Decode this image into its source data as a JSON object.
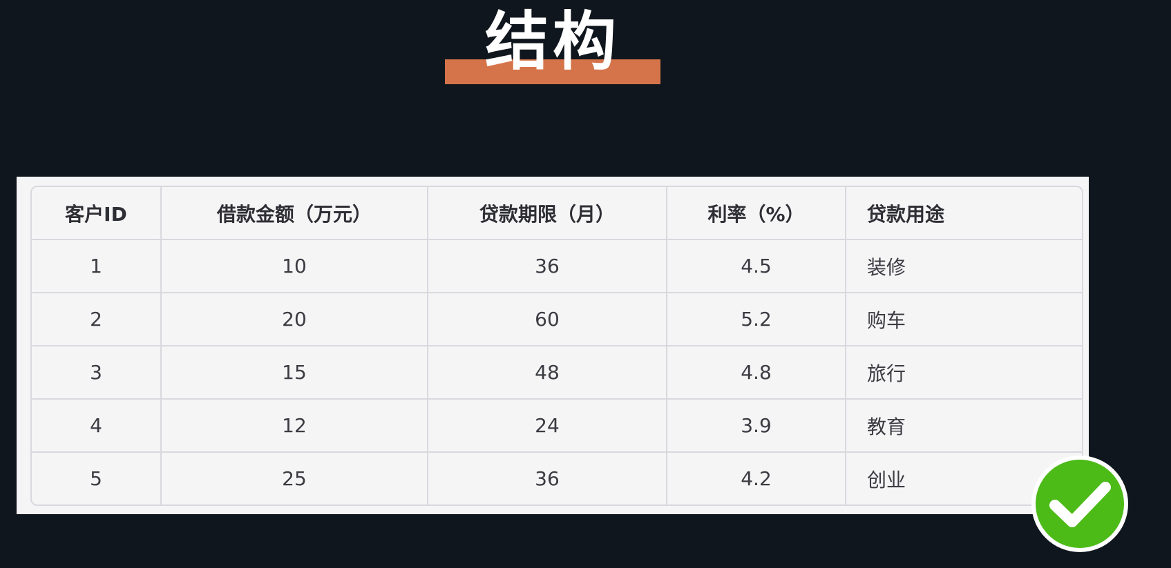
{
  "title": "结构",
  "table": {
    "headers": [
      "客户ID",
      "借款金额（万元）",
      "贷款期限（月）",
      "利率（%）",
      "贷款用途"
    ],
    "rows": [
      [
        "1",
        "10",
        "36",
        "4.5",
        "装修"
      ],
      [
        "2",
        "20",
        "60",
        "5.2",
        "购车"
      ],
      [
        "3",
        "15",
        "48",
        "4.8",
        "旅行"
      ],
      [
        "4",
        "12",
        "24",
        "3.9",
        "教育"
      ],
      [
        "5",
        "25",
        "36",
        "4.2",
        "创业"
      ]
    ]
  },
  "badge": {
    "icon": "check-icon",
    "color": "#4cbb17"
  },
  "colors": {
    "background": "#10161d",
    "accent_bar": "#d5744a"
  }
}
